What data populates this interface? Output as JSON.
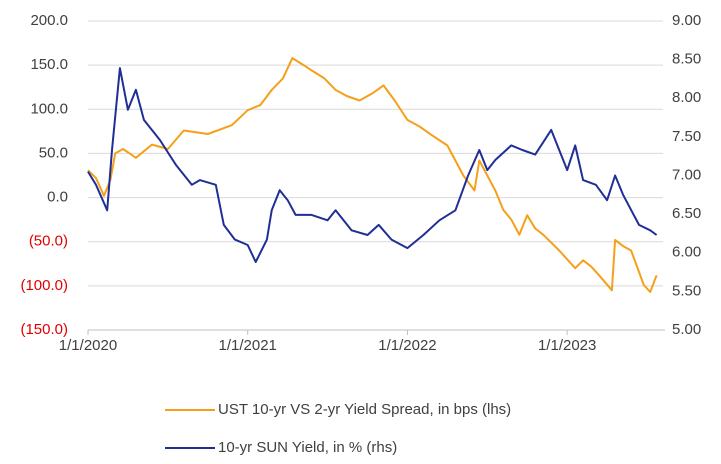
{
  "chart_data": {
    "type": "line",
    "xlim": [
      2020,
      2023.6
    ],
    "xticks": [
      {
        "value": 2020,
        "label": "1/1/2020"
      },
      {
        "value": 2021,
        "label": "1/1/2021"
      },
      {
        "value": 2022,
        "label": "1/1/2022"
      },
      {
        "value": 2023,
        "label": "1/1/2023"
      }
    ],
    "ylim": [
      -150,
      200
    ],
    "yticks": [
      {
        "value": -150,
        "label": "(150.0)"
      },
      {
        "value": -100,
        "label": "(100.0)"
      },
      {
        "value": -50,
        "label": "(50.0)"
      },
      {
        "value": 0,
        "label": "0.0"
      },
      {
        "value": 50,
        "label": "50.0"
      },
      {
        "value": 100,
        "label": "100.0"
      },
      {
        "value": 150,
        "label": "150.0"
      },
      {
        "value": 200,
        "label": "200.0"
      }
    ],
    "y2lim": [
      5,
      9
    ],
    "y2ticks": [
      {
        "value": 5,
        "label": "5.00"
      },
      {
        "value": 5.5,
        "label": "5.50"
      },
      {
        "value": 6,
        "label": "6.00"
      },
      {
        "value": 6.5,
        "label": "6.50"
      },
      {
        "value": 7,
        "label": "7.00"
      },
      {
        "value": 7.5,
        "label": "7.50"
      },
      {
        "value": 8,
        "label": "8.00"
      },
      {
        "value": 8.5,
        "label": "8.50"
      },
      {
        "value": 9,
        "label": "9.00"
      }
    ],
    "grid": true,
    "negative_label_color": "#e00000",
    "series": [
      {
        "name": "UST 10-yr VS 2-yr Yield Spread, in bps (lhs)",
        "color": "#f5a01a",
        "x": [
          2020,
          2020.05,
          2020.1,
          2020.14,
          2020.17,
          2020.22,
          2020.3,
          2020.4,
          2020.5,
          2020.6,
          2020.75,
          2020.9,
          2021,
          2021.08,
          2021.15,
          2021.22,
          2021.28,
          2021.35,
          2021.4,
          2021.48,
          2021.55,
          2021.62,
          2021.7,
          2021.78,
          2021.85,
          2021.92,
          2022,
          2022.08,
          2022.15,
          2022.25,
          2022.35,
          2022.42,
          2022.45,
          2022.5,
          2022.55,
          2022.6,
          2022.65,
          2022.7,
          2022.75,
          2022.8,
          2022.85,
          2022.95,
          2023.05,
          2023.1,
          2023.15,
          2023.2,
          2023.28,
          2023.3,
          2023.35,
          2023.4,
          2023.48,
          2023.52,
          2023.56
        ],
        "values": [
          31,
          22,
          2,
          20,
          50,
          55,
          45,
          60,
          55,
          76,
          72,
          82,
          99,
          105,
          122,
          135,
          158,
          150,
          144,
          135,
          122,
          115,
          110,
          118,
          127,
          110,
          88,
          80,
          71,
          59,
          25,
          8,
          42,
          25,
          8,
          -14,
          -25,
          -42,
          -20,
          -35,
          -42,
          -60,
          -80,
          -71,
          -78,
          -88,
          -105,
          -48,
          -55,
          -60,
          -99,
          -107,
          -88
        ]
      },
      {
        "name": "10-yr SUN Yield, in % (rhs)",
        "color": "#1f2f96",
        "axis": "y2",
        "x": [
          2020,
          2020.05,
          2020.12,
          2020.15,
          2020.2,
          2020.25,
          2020.3,
          2020.35,
          2020.45,
          2020.55,
          2020.65,
          2020.7,
          2020.8,
          2020.85,
          2020.92,
          2021,
          2021.05,
          2021.12,
          2021.15,
          2021.2,
          2021.25,
          2021.3,
          2021.4,
          2021.5,
          2021.55,
          2021.65,
          2021.75,
          2021.82,
          2021.9,
          2022,
          2022.1,
          2022.2,
          2022.3,
          2022.38,
          2022.45,
          2022.5,
          2022.55,
          2022.65,
          2022.72,
          2022.8,
          2022.9,
          2022.95,
          2023,
          2023.05,
          2023.1,
          2023.18,
          2023.25,
          2023.3,
          2023.35,
          2023.45,
          2023.52,
          2023.56
        ],
        "values": [
          7.05,
          6.88,
          6.55,
          7.33,
          8.39,
          7.85,
          8.11,
          7.72,
          7.46,
          7.14,
          6.88,
          6.94,
          6.88,
          6.36,
          6.17,
          6.1,
          5.88,
          6.17,
          6.55,
          6.81,
          6.68,
          6.49,
          6.49,
          6.42,
          6.55,
          6.29,
          6.23,
          6.36,
          6.17,
          6.06,
          6.23,
          6.42,
          6.55,
          7.0,
          7.33,
          7.07,
          7.2,
          7.39,
          7.33,
          7.27,
          7.59,
          7.33,
          7.07,
          7.39,
          6.94,
          6.88,
          6.68,
          7.0,
          6.75,
          6.36,
          6.29,
          6.23
        ]
      }
    ]
  }
}
